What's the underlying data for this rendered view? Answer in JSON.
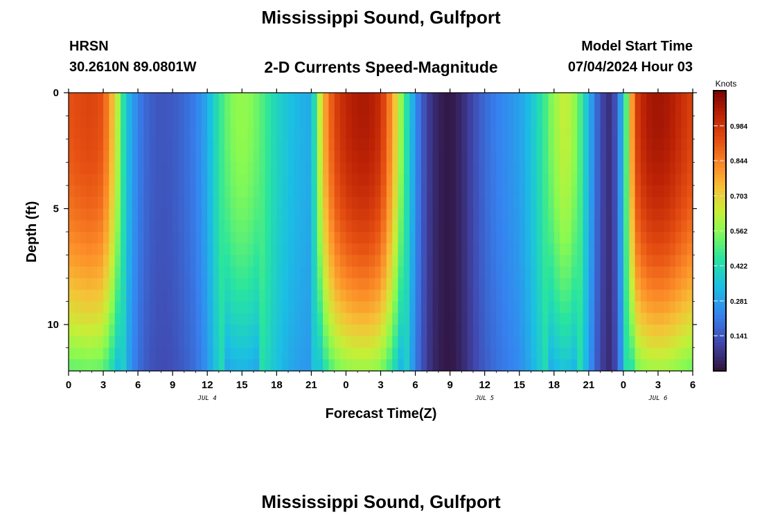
{
  "header": {
    "title": "Mississippi Sound, Gulfport",
    "station": "HRSN",
    "coords": "30.2610N  89.0801W",
    "product": "2-D Currents Speed-Magnitude",
    "model_start_label": "Model Start Time",
    "model_start_value": "07/04/2024 Hour 03"
  },
  "footer": {
    "title": "Mississippi Sound, Gulfport"
  },
  "chart_data": {
    "type": "heatmap",
    "title": "2-D Currents Speed-Magnitude",
    "xlabel": "Forecast Time(Z)",
    "ylabel": "Depth (ft)",
    "x_unit": "hours from 00Z Jul 4",
    "x_range": [
      0,
      54
    ],
    "y_range": [
      0,
      12
    ],
    "y_inverted": true,
    "x_tick_labels": [
      "0",
      "3",
      "6",
      "9",
      "12",
      "15",
      "18",
      "21",
      "0",
      "3",
      "6",
      "9",
      "12",
      "15",
      "18",
      "21",
      "0",
      "3",
      "6"
    ],
    "x_date_labels": [
      {
        "at": 12,
        "label": "JUL 4"
      },
      {
        "at": 36,
        "label": "JUL 5"
      },
      {
        "at": 51,
        "label": "JUL 6"
      }
    ],
    "y_tick_labels": [
      {
        "value": 0,
        "label": "0"
      },
      {
        "value": 5,
        "label": "5"
      },
      {
        "value": 10,
        "label": "10"
      }
    ],
    "colorbar": {
      "unit": "Knots",
      "min": 0.0,
      "max": 1.125,
      "tick_values": [
        0.141,
        0.281,
        0.422,
        0.562,
        0.703,
        0.844,
        0.984
      ],
      "tick_labels": [
        "0.141",
        "0.281",
        "0.422",
        "0.562",
        "0.703",
        "0.844",
        "0.984"
      ]
    },
    "surface_speed_profile": {
      "hours": [
        0,
        1,
        2,
        3,
        4,
        5,
        6,
        7,
        8,
        9,
        10,
        11,
        12,
        13,
        14,
        15,
        16,
        17,
        18,
        19,
        20,
        21,
        22,
        23,
        24,
        25,
        26,
        27,
        28,
        29,
        30,
        31,
        32,
        33,
        34,
        35,
        36,
        37,
        38,
        39,
        40,
        41,
        42,
        43,
        44,
        45,
        46,
        47,
        48,
        49,
        50,
        51,
        52,
        53,
        54
      ],
      "speed_knots": [
        0.92,
        0.94,
        0.95,
        0.92,
        0.7,
        0.35,
        0.22,
        0.16,
        0.14,
        0.15,
        0.18,
        0.22,
        0.3,
        0.45,
        0.55,
        0.58,
        0.55,
        0.48,
        0.4,
        0.35,
        0.32,
        0.3,
        0.75,
        0.95,
        1.02,
        1.05,
        1.05,
        1.0,
        0.8,
        0.5,
        0.25,
        0.1,
        0.03,
        0.01,
        0.05,
        0.12,
        0.18,
        0.22,
        0.25,
        0.28,
        0.35,
        0.45,
        0.58,
        0.65,
        0.55,
        0.32,
        0.12,
        0.05,
        0.35,
        0.95,
        1.05,
        1.07,
        1.05,
        1.0,
        0.95
      ]
    },
    "depth_attenuation_at_bottom": 0.55
  }
}
